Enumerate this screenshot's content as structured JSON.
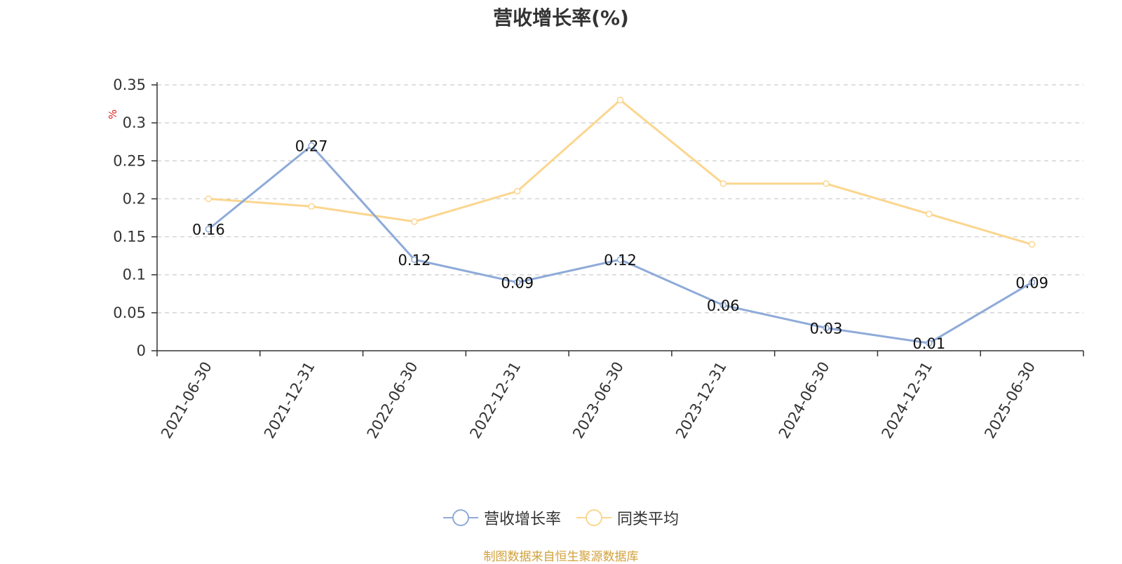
{
  "title": "营收增长率(%)",
  "source_note": "制图数据来自恒生聚源数据库",
  "chart_data": {
    "type": "line",
    "categories": [
      "2021-06-30",
      "2021-12-31",
      "2022-06-30",
      "2022-12-31",
      "2023-06-30",
      "2023-12-31",
      "2024-06-30",
      "2024-12-31",
      "2025-06-30"
    ],
    "series": [
      {
        "name": "营收增长率",
        "color": "#8eaad8",
        "values": [
          0.16,
          0.27,
          0.12,
          0.09,
          0.12,
          0.06,
          0.03,
          0.01,
          0.09
        ],
        "labels": [
          "0.16",
          "0.27",
          "0.12",
          "0.09",
          "0.12",
          "0.06",
          "0.03",
          "0.01",
          "0.09"
        ]
      },
      {
        "name": "同类平均",
        "color": "#fbd68f",
        "values": [
          0.2,
          0.19,
          0.17,
          0.21,
          0.33,
          0.22,
          0.22,
          0.18,
          0.14
        ]
      }
    ],
    "ylabel": "%",
    "ylim": [
      0,
      0.35
    ],
    "yticks": [
      "0",
      "0.05",
      "0.1",
      "0.15",
      "0.2",
      "0.25",
      "0.3",
      "0.35"
    ],
    "grid": true,
    "legend_position": "bottom"
  }
}
